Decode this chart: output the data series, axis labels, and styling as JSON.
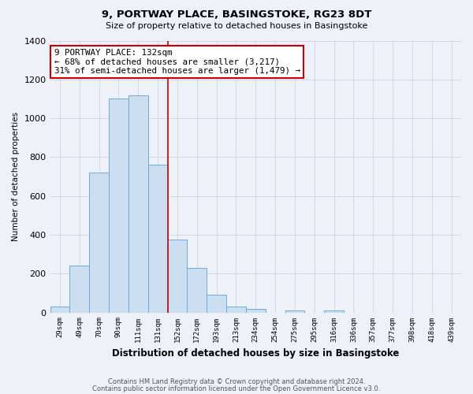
{
  "title_line1": "9, PORTWAY PLACE, BASINGSTOKE, RG23 8DT",
  "title_line2": "Size of property relative to detached houses in Basingstoke",
  "xlabel": "Distribution of detached houses by size in Basingstoke",
  "ylabel": "Number of detached properties",
  "footer_line1": "Contains HM Land Registry data © Crown copyright and database right 2024.",
  "footer_line2": "Contains public sector information licensed under the Open Government Licence v3.0.",
  "bar_labels": [
    "29sqm",
    "49sqm",
    "70sqm",
    "90sqm",
    "111sqm",
    "131sqm",
    "152sqm",
    "172sqm",
    "193sqm",
    "213sqm",
    "234sqm",
    "254sqm",
    "275sqm",
    "295sqm",
    "316sqm",
    "336sqm",
    "357sqm",
    "377sqm",
    "398sqm",
    "418sqm",
    "439sqm"
  ],
  "bar_values": [
    30,
    240,
    720,
    1100,
    1120,
    760,
    375,
    230,
    90,
    30,
    20,
    0,
    10,
    0,
    10,
    0,
    0,
    0,
    0,
    0,
    0
  ],
  "bar_color": "#ccdff0",
  "bar_edge_color": "#6aabdb",
  "ylim": [
    0,
    1400
  ],
  "yticks": [
    0,
    200,
    400,
    600,
    800,
    1000,
    1200,
    1400
  ],
  "marker_index": 5,
  "marker_color": "#cc0000",
  "annotation_title": "9 PORTWAY PLACE: 132sqm",
  "annotation_line1": "← 68% of detached houses are smaller (3,217)",
  "annotation_line2": "31% of semi-detached houses are larger (1,479) →",
  "annotation_box_color": "#ffffff",
  "annotation_box_edge": "#cc0000",
  "grid_color": "#cdd8ea",
  "background_color": "#eef2f8"
}
